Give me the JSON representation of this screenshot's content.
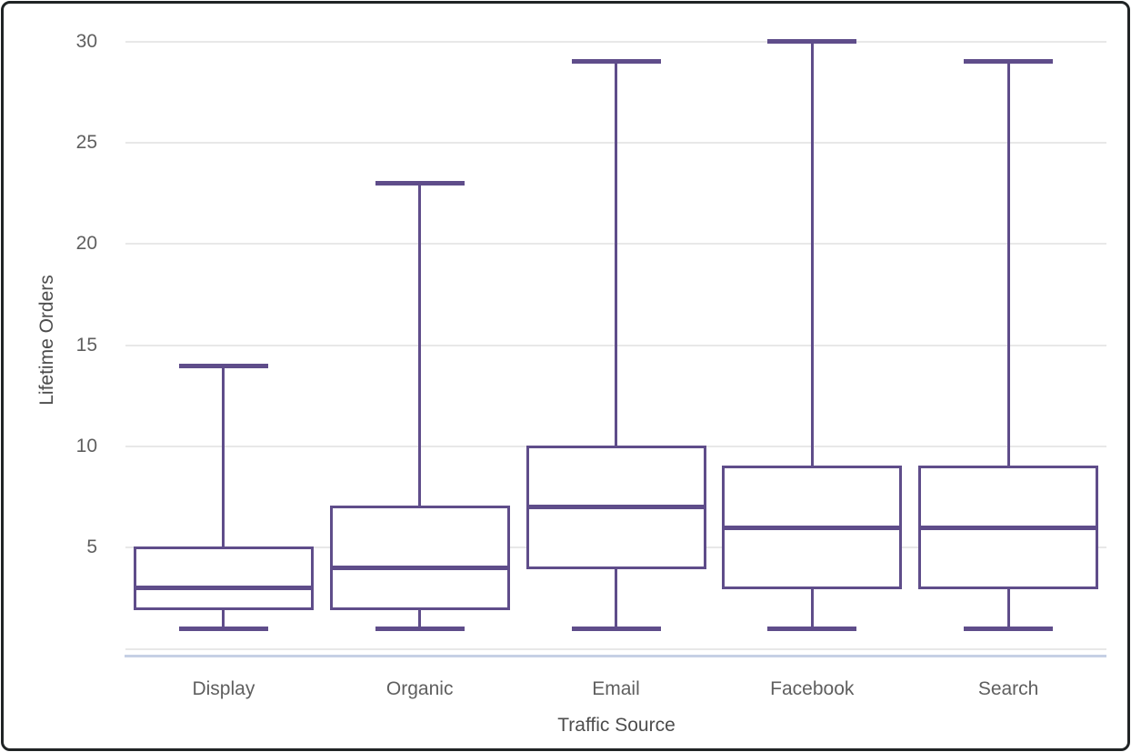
{
  "chart_data": {
    "type": "boxplot",
    "title": "",
    "xlabel": "Traffic Source",
    "ylabel": "Lifetime Orders",
    "categories": [
      "Display",
      "Organic",
      "Email",
      "Facebook",
      "Search"
    ],
    "series": [
      {
        "name": "Display",
        "min": 1,
        "q1": 2,
        "median": 3,
        "q3": 5,
        "max": 14
      },
      {
        "name": "Organic",
        "min": 1,
        "q1": 2,
        "median": 4,
        "q3": 7,
        "max": 23
      },
      {
        "name": "Email",
        "min": 1,
        "q1": 4,
        "median": 7,
        "q3": 10,
        "max": 29
      },
      {
        "name": "Facebook",
        "min": 1,
        "q1": 3,
        "median": 6,
        "q3": 9,
        "max": 30
      },
      {
        "name": "Search",
        "min": 1,
        "q1": 3,
        "median": 6,
        "q3": 9,
        "max": 29
      }
    ],
    "ylim": [
      0,
      30
    ],
    "yticks": [
      30,
      25,
      20,
      15,
      10,
      5
    ],
    "gridlines": [
      30,
      25,
      20,
      15,
      10,
      5,
      0
    ],
    "grid": true,
    "legend": "none",
    "colors": {
      "box_stroke": "#5f4d8a",
      "box_fill": "#ffffff",
      "gridline": "#e8e8e8",
      "axis_line": "#c6d0e5",
      "tick_label": "#5f5f5f",
      "axis_title": "#4d4d4d",
      "frame": "#202425"
    }
  }
}
